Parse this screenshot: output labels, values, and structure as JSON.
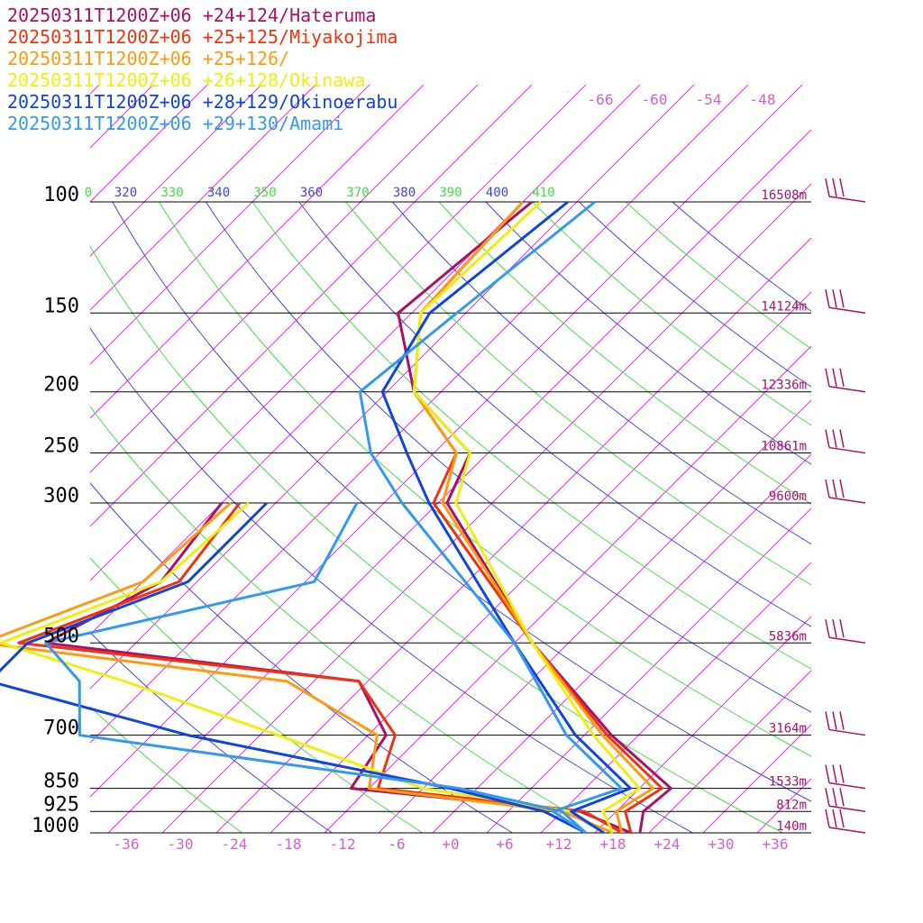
{
  "chart_data": {
    "type": "line",
    "chart_kind": "Skew-T log-P sounding (temperature and dewpoint profiles)",
    "title": "",
    "pressure_levels_hPa": [
      100,
      150,
      200,
      250,
      300,
      500,
      700,
      850,
      925,
      1000
    ],
    "pressure_labels": [
      "100",
      "150",
      "200",
      "250",
      "300",
      "500",
      "700",
      "850",
      "925",
      "1000"
    ],
    "height_labels": [
      "16508m",
      "14124m",
      "12336m",
      "10861m",
      "9600m",
      "5836m",
      "3164m",
      "1533m",
      "812m",
      "140m"
    ],
    "temperature_tick_labels": [
      "-36",
      "-30",
      "-24",
      "-18",
      "-12",
      "-6",
      "+0",
      "+6",
      "+12",
      "+18",
      "+24",
      "+30",
      "+36"
    ],
    "isotherm_upper_labels": [
      "-66",
      "-60",
      "-54",
      "-48"
    ],
    "theta_labels": [
      {
        "text": "0",
        "color": "#44dd44"
      },
      {
        "text": "320",
        "color": "#4444dd"
      },
      {
        "text": "330",
        "color": "#44dd44"
      },
      {
        "text": "340",
        "color": "#4444dd"
      },
      {
        "text": "350",
        "color": "#44dd44"
      },
      {
        "text": "360",
        "color": "#4444dd"
      },
      {
        "text": "370",
        "color": "#44dd44"
      },
      {
        "text": "380",
        "color": "#4444dd"
      },
      {
        "text": "390",
        "color": "#44dd44"
      },
      {
        "text": "400",
        "color": "#4444dd"
      },
      {
        "text": "410",
        "color": "#44dd44"
      }
    ],
    "xlim_C": [
      -40,
      40
    ],
    "y_scale": "log pressure",
    "ylim_hPa": [
      1000,
      100
    ],
    "legend_placement": "top-left",
    "series": [
      {
        "name": "20250311T1200Z+06 +24+124/Hateruma",
        "color": "#aa1166",
        "temperature": [
          [
            100,
            -61
          ],
          [
            150,
            -63.5
          ],
          [
            200,
            -53
          ],
          [
            250,
            -40
          ],
          [
            300,
            -37
          ],
          [
            500,
            -12
          ],
          [
            700,
            7
          ],
          [
            850,
            19.5
          ],
          [
            925,
            19
          ],
          [
            1000,
            21
          ]
        ],
        "dewpoint": [
          [
            300,
            -62
          ],
          [
            400,
            -60
          ],
          [
            500,
            -66
          ],
          [
            575,
            -27
          ],
          [
            700,
            -18
          ],
          [
            850,
            -16
          ],
          [
            925,
            12
          ],
          [
            1000,
            20
          ]
        ]
      },
      {
        "name": "20250311T1200Z+06 +25+125/Miyakojima",
        "color": "#ee3311",
        "temperature": [
          [
            100,
            -62
          ],
          [
            150,
            -61
          ],
          [
            200,
            -53
          ],
          [
            250,
            -41.5
          ],
          [
            300,
            -38.5
          ],
          [
            500,
            -12
          ],
          [
            700,
            6.5
          ],
          [
            850,
            18.5
          ],
          [
            925,
            17
          ],
          [
            1000,
            20
          ]
        ],
        "dewpoint": [
          [
            300,
            -60
          ],
          [
            400,
            -58
          ],
          [
            500,
            -69
          ],
          [
            575,
            -27
          ],
          [
            700,
            -17
          ],
          [
            850,
            -13
          ],
          [
            925,
            12.5
          ],
          [
            1000,
            19
          ]
        ]
      },
      {
        "name": "20250311T1200Z+06 +25+126/",
        "color": "#ff9910",
        "temperature": [
          [
            100,
            -62
          ],
          [
            150,
            -61
          ],
          [
            200,
            -53
          ],
          [
            250,
            -41.5
          ],
          [
            300,
            -37.5
          ],
          [
            500,
            -12
          ],
          [
            700,
            6
          ],
          [
            850,
            17.5
          ],
          [
            925,
            16
          ],
          [
            1000,
            19
          ]
        ],
        "dewpoint": [
          [
            300,
            -61
          ],
          [
            400,
            -62
          ],
          [
            500,
            -73
          ],
          [
            575,
            -35
          ],
          [
            700,
            -19
          ],
          [
            850,
            -14
          ],
          [
            925,
            10
          ],
          [
            1000,
            18
          ]
        ]
      },
      {
        "name": "20250311T1200Z+06 +26+128/Okinawa",
        "color": "#eeee10",
        "temperature": [
          [
            100,
            -60
          ],
          [
            150,
            -61
          ],
          [
            200,
            -53
          ],
          [
            250,
            -40
          ],
          [
            300,
            -36
          ],
          [
            500,
            -12
          ],
          [
            700,
            5
          ],
          [
            850,
            16
          ],
          [
            925,
            14.5
          ],
          [
            1000,
            18
          ]
        ],
        "dewpoint": [
          [
            300,
            -59
          ],
          [
            400,
            -60
          ],
          [
            500,
            -71
          ],
          [
            575,
            -53
          ],
          [
            700,
            -30
          ],
          [
            850,
            -8
          ],
          [
            925,
            11
          ],
          [
            1000,
            17
          ]
        ]
      },
      {
        "name": "20250311T1200Z+06 +28+129/Okinoerabu",
        "color": "#1144dd",
        "temperature": [
          [
            100,
            -57
          ],
          [
            150,
            -60
          ],
          [
            200,
            -56.5
          ],
          [
            250,
            -47
          ],
          [
            300,
            -39
          ],
          [
            500,
            -14
          ],
          [
            700,
            3
          ],
          [
            850,
            15
          ],
          [
            925,
            11
          ],
          [
            1000,
            17
          ]
        ],
        "dewpoint": [
          [
            300,
            -57
          ],
          [
            400,
            -57
          ],
          [
            500,
            -68
          ],
          [
            575,
            -68
          ],
          [
            700,
            -40
          ],
          [
            850,
            -5
          ],
          [
            925,
            8
          ],
          [
            1000,
            15
          ]
        ]
      },
      {
        "name": "20250311T1200Z+06 +29+130/Amami",
        "color": "#3399ee",
        "temperature": [
          [
            100,
            -54
          ],
          [
            150,
            -57
          ],
          [
            200,
            -59
          ],
          [
            250,
            -51
          ],
          [
            300,
            -42
          ],
          [
            500,
            -14
          ],
          [
            700,
            2
          ],
          [
            850,
            14
          ],
          [
            925,
            9
          ],
          [
            1000,
            15
          ]
        ],
        "dewpoint": [
          [
            300,
            -47
          ],
          [
            400,
            -43
          ],
          [
            500,
            -66
          ],
          [
            575,
            -58
          ],
          [
            700,
            -52
          ],
          [
            850,
            -4
          ],
          [
            925,
            10
          ],
          [
            1000,
            15
          ]
        ]
      }
    ],
    "wind_barbs": {
      "color": "#aa1166",
      "levels_hPa": [
        100,
        150,
        200,
        250,
        300,
        500,
        700,
        850,
        925,
        1000
      ]
    }
  }
}
